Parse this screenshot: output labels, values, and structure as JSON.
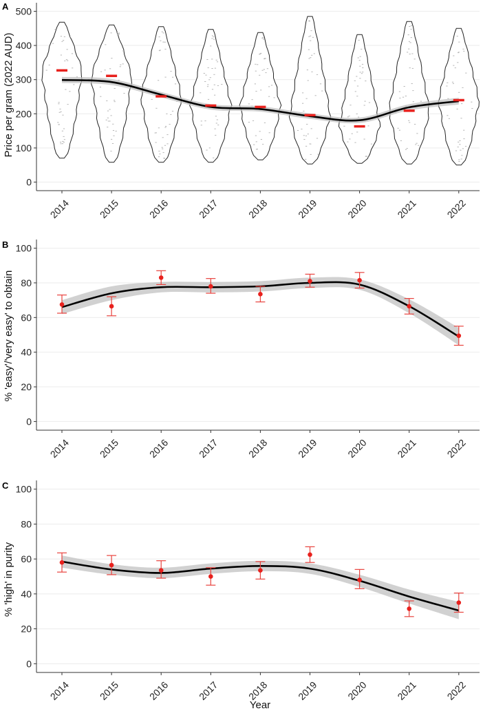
{
  "chart_data": [
    {
      "panel": "A",
      "type": "violin",
      "title": "",
      "xlabel": "",
      "ylabel": "Price per gram (2022 AUD)",
      "ylim": [
        -25,
        525
      ],
      "yticks": [
        0,
        100,
        200,
        300,
        400,
        500
      ],
      "categories": [
        "2014",
        "2015",
        "2016",
        "2017",
        "2018",
        "2019",
        "2020",
        "2021",
        "2022"
      ],
      "medians": [
        327,
        311,
        251,
        224,
        220,
        196,
        163,
        209,
        240
      ],
      "min": [
        70,
        58,
        58,
        58,
        65,
        53,
        55,
        53,
        50
      ],
      "max": [
        468,
        460,
        455,
        447,
        438,
        485,
        432,
        470,
        450
      ],
      "trend": [
        299,
        293,
        256,
        220,
        214,
        193,
        181,
        219,
        237
      ],
      "trend_se": [
        9,
        9,
        8,
        8,
        8,
        8,
        8,
        9,
        10
      ]
    },
    {
      "panel": "B",
      "type": "scatter",
      "title": "",
      "xlabel": "",
      "ylabel": "% 'easy'/'very easy' to obtain",
      "ylim": [
        -5,
        105
      ],
      "yticks": [
        0,
        20,
        40,
        60,
        80,
        100
      ],
      "categories": [
        "2014",
        "2015",
        "2016",
        "2017",
        "2018",
        "2019",
        "2020",
        "2021",
        "2022"
      ],
      "values": [
        67.5,
        66.5,
        83,
        78,
        73.5,
        81,
        81.5,
        66.5,
        49.5
      ],
      "ci_low": [
        62.5,
        61,
        79,
        74,
        69,
        77.5,
        77,
        62,
        44
      ],
      "ci_high": [
        73,
        72,
        87,
        82.5,
        78,
        85,
        86,
        71,
        55
      ],
      "trend": [
        66,
        74,
        77.5,
        77.5,
        78,
        80,
        79,
        66.5,
        49
      ],
      "trend_se": [
        4,
        4,
        3,
        3,
        3,
        3,
        3,
        4,
        5
      ]
    },
    {
      "panel": "C",
      "type": "scatter",
      "title": "",
      "xlabel": "Year",
      "ylabel": "% 'high' in purity",
      "ylim": [
        -5,
        105
      ],
      "yticks": [
        0,
        20,
        40,
        60,
        80,
        100
      ],
      "categories": [
        "2014",
        "2015",
        "2016",
        "2017",
        "2018",
        "2019",
        "2020",
        "2021",
        "2022"
      ],
      "values": [
        58,
        56.5,
        53.5,
        50,
        53.5,
        62.5,
        48,
        31.5,
        35
      ],
      "ci_low": [
        52.5,
        51,
        49,
        45,
        48.5,
        58,
        43,
        27,
        29.5
      ],
      "ci_high": [
        63.5,
        62,
        59,
        55,
        58.5,
        67,
        54,
        36,
        40.5
      ],
      "trend": [
        58.5,
        54,
        52,
        54.5,
        56,
        54.5,
        47.5,
        38.5,
        30.5
      ],
      "trend_se": [
        3.5,
        3,
        3,
        3,
        3,
        3,
        3.5,
        4,
        5
      ]
    }
  ]
}
